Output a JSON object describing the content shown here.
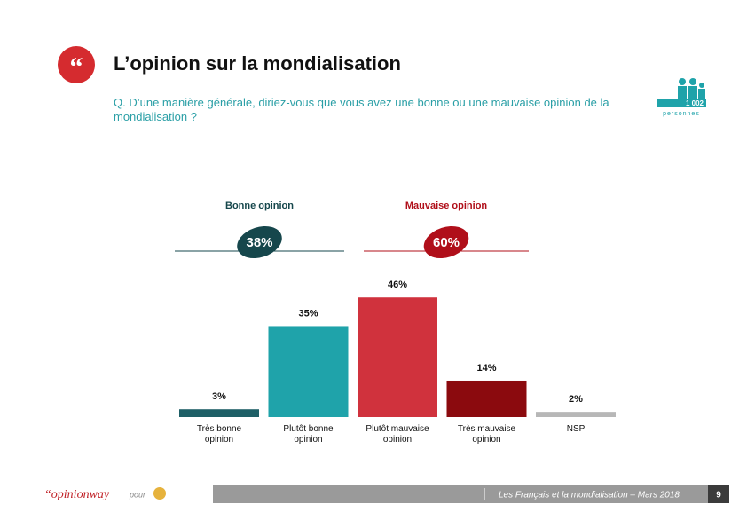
{
  "header": {
    "title": "L’opinion sur la mondialisation",
    "question": "Q. D’une manière générale, diriez-vous que vous avez une bonne ou une mauvaise opinion de la mondialisation ?"
  },
  "sample": {
    "count": "1 002",
    "unit": "personnes"
  },
  "chart_data": {
    "type": "bar",
    "groups": [
      {
        "name": "Bonne opinion",
        "value": 38,
        "value_label": "38%",
        "color": "#16474c"
      },
      {
        "name": "Mauvaise opinion",
        "value": 60,
        "value_label": "60%",
        "color": "#b00f1a"
      }
    ],
    "categories": [
      "Très bonne opinion",
      "Plutôt bonne opinion",
      "Plutôt mauvaise opinion",
      "Très mauvaise opinion",
      "NSP"
    ],
    "values": [
      3,
      35,
      46,
      14,
      2
    ],
    "value_labels": [
      "3%",
      "35%",
      "46%",
      "14%",
      "2%"
    ],
    "colors": [
      "#1e5f66",
      "#1fa3aa",
      "#d0323d",
      "#8b0a0e",
      "#b7b7b7"
    ]
  },
  "footer": {
    "brand": "“opinionway",
    "pour": "pour",
    "caption": "Les Français et la mondialisation – Mars 2018",
    "page": "9"
  }
}
